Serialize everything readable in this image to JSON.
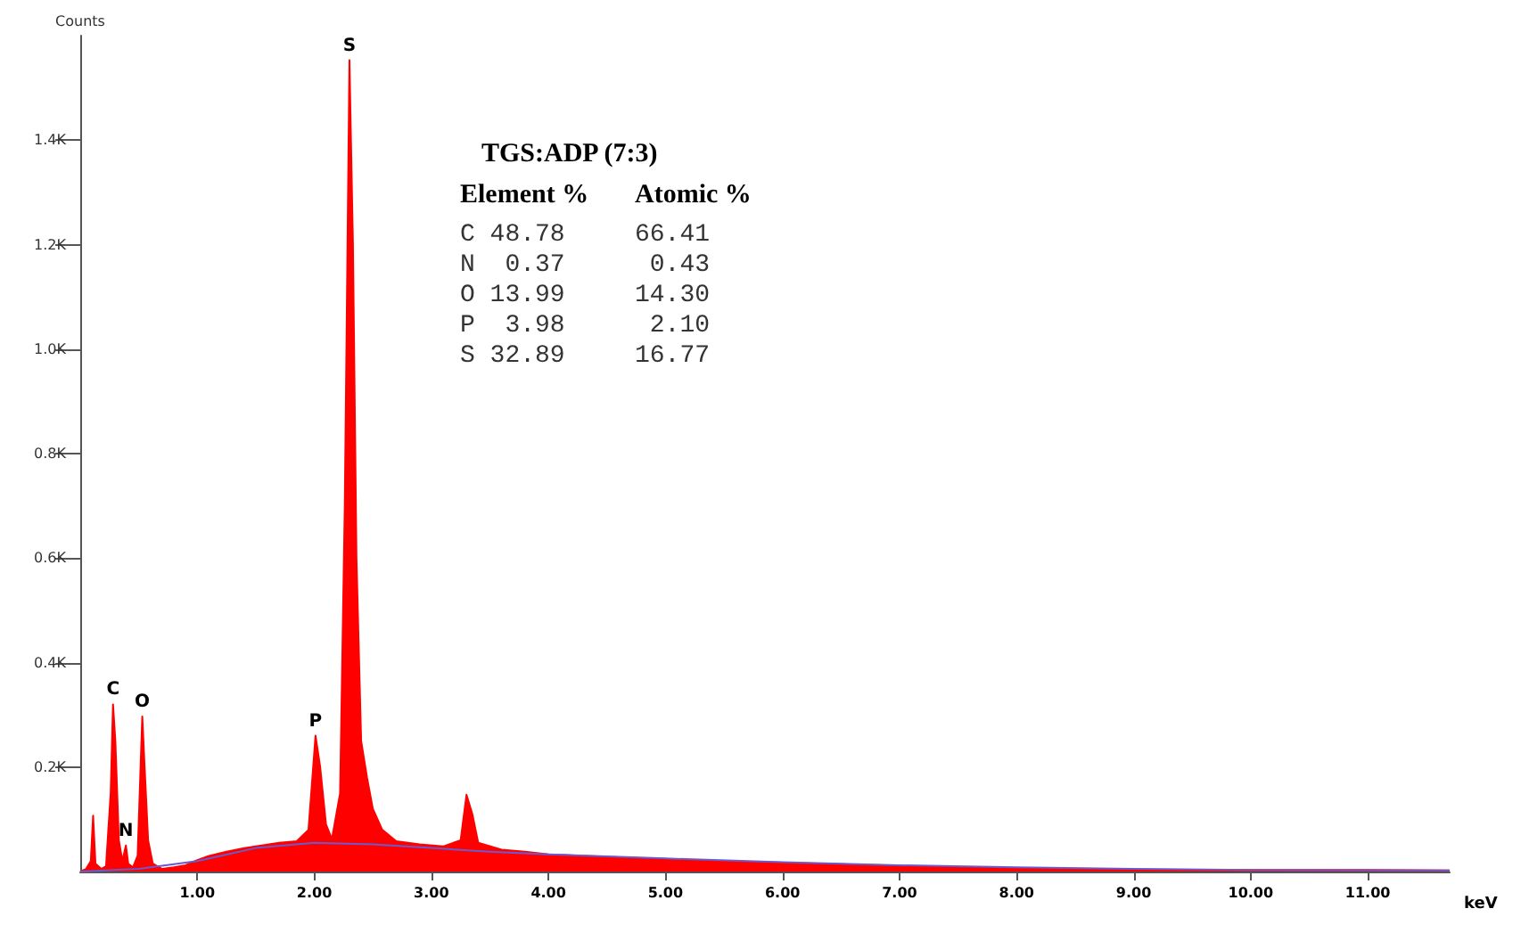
{
  "chart_data": {
    "type": "area",
    "title": "TGS:ADP (7:3)",
    "xlabel": "keV",
    "ylabel": "Counts",
    "xlim": [
      0,
      11.7
    ],
    "xticks": [
      {
        "value": 1,
        "label": "1.00"
      },
      {
        "value": 2,
        "label": "2.00"
      },
      {
        "value": 3,
        "label": "3.00"
      },
      {
        "value": 4,
        "label": "4.00"
      },
      {
        "value": 5,
        "label": "5.00"
      },
      {
        "value": 6,
        "label": "6.00"
      },
      {
        "value": 7,
        "label": "7.00"
      },
      {
        "value": 8,
        "label": "8.00"
      },
      {
        "value": 9,
        "label": "9.00"
      },
      {
        "value": 10,
        "label": "10.00"
      },
      {
        "value": 11,
        "label": "11.00"
      }
    ],
    "ylim": [
      0,
      1600
    ],
    "yticks": [
      {
        "value": 200,
        "label": "0.2K"
      },
      {
        "value": 400,
        "label": "0.4K"
      },
      {
        "value": 600,
        "label": "0.6K"
      },
      {
        "value": 800,
        "label": "0.8K"
      },
      {
        "value": 1000,
        "label": "1.0K"
      },
      {
        "value": 1200,
        "label": "1.2K"
      },
      {
        "value": 1400,
        "label": "1.4K"
      }
    ],
    "series": [
      {
        "color": "#ff0000",
        "x": [
          0,
          0.05,
          0.09,
          0.11,
          0.13,
          0.18,
          0.22,
          0.26,
          0.28,
          0.3,
          0.33,
          0.36,
          0.39,
          0.41,
          0.45,
          0.49,
          0.53,
          0.55,
          0.58,
          0.62,
          0.7,
          0.8,
          0.9,
          1.0,
          1.1,
          1.25,
          1.4,
          1.55,
          1.7,
          1.85,
          1.95,
          2.01,
          2.05,
          2.1,
          2.15,
          2.22,
          2.26,
          2.3,
          2.33,
          2.36,
          2.4,
          2.45,
          2.5,
          2.58,
          2.7,
          2.9,
          3.1,
          3.25,
          3.3,
          3.35,
          3.4,
          3.6,
          3.8,
          4.0,
          4.5,
          5.0,
          5.5,
          6.0,
          6.5,
          7.0,
          7.5,
          8.0,
          9.0,
          10.0,
          11.0,
          11.7
        ],
        "values": [
          0,
          5,
          20,
          107,
          15,
          5,
          10,
          150,
          320,
          250,
          60,
          20,
          50,
          15,
          8,
          30,
          297,
          200,
          60,
          15,
          5,
          8,
          12,
          22,
          30,
          38,
          45,
          50,
          55,
          58,
          80,
          260,
          200,
          90,
          62,
          150,
          700,
          1553,
          1200,
          600,
          250,
          180,
          120,
          80,
          58,
          52,
          48,
          60,
          147,
          110,
          55,
          42,
          38,
          33,
          28,
          24,
          20,
          17,
          14,
          11,
          8,
          6,
          4,
          3,
          3,
          2
        ]
      },
      {
        "type": "line",
        "color": "#6a5acd",
        "x": [
          0,
          0.5,
          1.0,
          1.5,
          2.0,
          2.5,
          3.0,
          3.5,
          4.0,
          5.0,
          6.0,
          7.0,
          8.0,
          9.0,
          10.0,
          11.7
        ],
        "values": [
          0,
          5,
          20,
          45,
          55,
          52,
          45,
          38,
          33,
          25,
          18,
          12,
          8,
          5,
          3,
          2
        ]
      }
    ],
    "annotations": [
      {
        "text": "C",
        "x": 0.28,
        "y": 320
      },
      {
        "text": "N",
        "x": 0.39,
        "y": 50
      },
      {
        "text": "O",
        "x": 0.53,
        "y": 297
      },
      {
        "text": "P",
        "x": 2.01,
        "y": 260
      },
      {
        "text": "S",
        "x": 2.3,
        "y": 1553
      },
      "Element %",
      "Atomic %",
      "C 48.78",
      "66.41",
      "N  0.37",
      " 0.43",
      "O 13.99",
      "14.30",
      "P  3.98",
      " 2.10",
      "S 32.89",
      "16.77"
    ],
    "grid": false,
    "marker": "none"
  }
}
